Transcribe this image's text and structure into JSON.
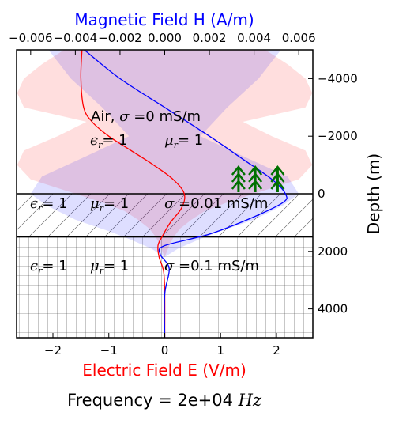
{
  "chart_data": {
    "type": "line",
    "title": "Frequency =  2e+04 Hz",
    "title_prefix": "Frequency =  2e+04",
    "title_unit": "Hz",
    "xlabel": "Electric Field E (V/m)",
    "xlabel_top": "Magnetic Field H (A/m)",
    "ylabel": "Depth (m)",
    "xlim": [
      -2.65,
      2.65
    ],
    "xlim_top": [
      -0.00663,
      0.00663
    ],
    "ylim": [
      -5000,
      5000
    ],
    "y_inverted": true,
    "xticks": [
      -2,
      -1,
      0,
      1,
      2
    ],
    "xtick_labels": [
      "−2",
      "−1",
      "0",
      "1",
      "2"
    ],
    "xticks_top": [
      -0.006,
      -0.004,
      -0.002,
      0.0,
      0.002,
      0.004,
      0.006
    ],
    "xtick_labels_top": [
      "−0.006",
      "−0.004",
      "−0.002",
      "0.000",
      "0.002",
      "0.004",
      "0.006"
    ],
    "yticks": [
      -4000,
      -2000,
      0,
      2000,
      4000
    ],
    "ytick_labels": [
      "−4000",
      "−2000",
      "0",
      "2000",
      "4000"
    ],
    "layers": [
      {
        "name": "air",
        "top": -5000,
        "bottom": 0,
        "pattern": "none",
        "label": "Air, σ =0 mS/m",
        "eps": "ϵr= 1",
        "mu": "μr= 1"
      },
      {
        "name": "layer1",
        "top": 0,
        "bottom": 1500,
        "pattern": "diagonal",
        "eps": "ϵr= 1",
        "mu": "μr= 1",
        "sigma": "σ =0.01 mS/m"
      },
      {
        "name": "layer2",
        "top": 1500,
        "bottom": 5000,
        "pattern": "grid",
        "eps": "ϵr= 1",
        "mu": "μr= 1",
        "sigma": "σ =0.1 mS/m"
      }
    ],
    "series": [
      {
        "axis": "bottom",
        "color": "#ff0000",
        "x": [
          -1.48,
          -1.5,
          -1.45,
          -1.3,
          -1.0,
          -0.6,
          -0.2,
          0.15,
          0.35,
          0.3,
          0.1,
          -0.05,
          -0.12,
          -0.1,
          -0.02,
          0.0,
          0.0
        ],
        "y": [
          -5000,
          -4000,
          -3000,
          -2500,
          -2000,
          -1500,
          -1000,
          -500,
          0,
          500,
          1000,
          1500,
          1800,
          2200,
          2700,
          3500,
          5000
        ]
      },
      {
        "axis": "top",
        "color": "#0000ff",
        "x": [
          -0.0036,
          -0.002,
          0.0,
          0.002,
          0.0035,
          0.0048,
          0.0054,
          0.0053,
          0.004,
          0.002,
          0.0,
          -0.0002,
          0.0002,
          0.0,
          0.0
        ],
        "y": [
          -5000,
          -4000,
          -3000,
          -2000,
          -1200,
          -500,
          0,
          300,
          800,
          1400,
          1800,
          2100,
          2600,
          3500,
          5000
        ]
      }
    ],
    "envelopes": [
      {
        "axis": "top",
        "color": "#ff0000",
        "depth": [
          -5000,
          -4500,
          -4000,
          -3500,
          -3000,
          -2500,
          -2000,
          -1500,
          -1000,
          -500,
          0,
          300,
          600,
          900,
          1200,
          1500,
          1800,
          2200,
          5000
        ],
        "half_width": [
          0.0045,
          0.0055,
          0.0063,
          0.0066,
          0.0063,
          0.0035,
          0.0048,
          0.0063,
          0.0066,
          0.006,
          0.004,
          0.0028,
          0.0018,
          0.0012,
          0.0007,
          0.0004,
          0.0002,
          0.0,
          0.0
        ]
      },
      {
        "axis": "top",
        "color": "#0000ff",
        "depth": [
          -5000,
          -4000,
          -3000,
          -2000,
          -1200,
          -600,
          0,
          400,
          900,
          1300,
          1600,
          1900,
          2100,
          2200,
          5000
        ],
        "half_width": [
          0.0052,
          0.0042,
          0.0028,
          0.0016,
          0.0038,
          0.0055,
          0.006,
          0.0053,
          0.004,
          0.0025,
          0.0015,
          0.0006,
          0.0002,
          0.0,
          0.0
        ]
      }
    ]
  },
  "trees_icon": "tree-icon",
  "colors": {
    "e_field": "#ff0000",
    "h_field": "#0000ff",
    "tree": "#007000"
  }
}
